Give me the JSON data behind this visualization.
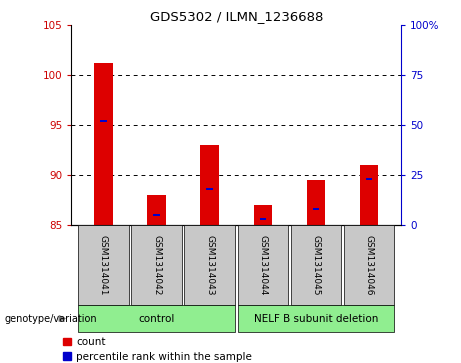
{
  "title": "GDS5302 / ILMN_1236688",
  "samples": [
    "GSM1314041",
    "GSM1314042",
    "GSM1314043",
    "GSM1314044",
    "GSM1314045",
    "GSM1314046"
  ],
  "count_values": [
    101.2,
    88.0,
    93.0,
    87.0,
    89.5,
    91.0
  ],
  "percentile_rank": [
    52,
    5,
    18,
    3,
    8,
    23
  ],
  "ylim_left": [
    85,
    105
  ],
  "yticks_left": [
    85,
    90,
    95,
    100,
    105
  ],
  "ylim_right": [
    0,
    100
  ],
  "yticks_right": [
    0,
    25,
    50,
    75,
    100
  ],
  "ytick_labels_right": [
    "0",
    "25",
    "50",
    "75",
    "100%"
  ],
  "groups": [
    {
      "label": "control",
      "indices": [
        0,
        1,
        2
      ],
      "color": "#90EE90"
    },
    {
      "label": "NELF B subunit deletion",
      "indices": [
        3,
        4,
        5
      ],
      "color": "#90EE90"
    }
  ],
  "bar_color_red": "#DD0000",
  "bar_color_blue": "#0000CC",
  "bg_color_plot": "#FFFFFF",
  "bg_color_xticklabels": "#C8C8C8",
  "red_bar_width": 0.35,
  "blue_bar_width": 0.12,
  "left_ylabel_color": "#CC0000",
  "right_ylabel_color": "#0000CC",
  "arrow_color": "#808080"
}
